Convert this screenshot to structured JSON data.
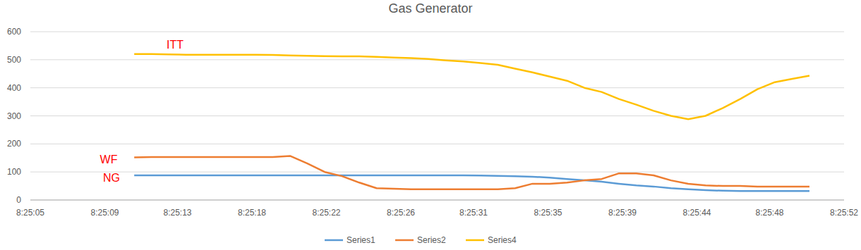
{
  "chart_data": {
    "type": "line",
    "title": "Gas Generator",
    "annotations": [
      "ITT",
      "WF",
      "NG"
    ],
    "x": [
      11,
      12,
      13,
      14,
      15,
      16,
      17,
      18,
      19,
      20,
      21,
      22,
      23,
      24,
      25,
      26,
      27,
      28,
      29,
      30,
      31,
      32,
      33,
      34,
      35,
      36,
      37,
      38,
      39,
      40,
      41,
      42,
      43,
      44,
      45,
      46,
      47,
      48,
      49,
      50
    ],
    "series": [
      {
        "name": "Series1",
        "color": "#5b9bd5",
        "values": [
          88,
          88,
          88,
          88,
          88,
          88,
          88,
          88,
          88,
          88,
          88,
          88,
          88,
          88,
          88,
          88,
          88,
          88,
          88,
          88,
          87,
          86,
          85,
          83,
          80,
          75,
          70,
          65,
          58,
          52,
          48,
          42,
          38,
          35,
          33,
          32,
          32,
          32,
          32,
          32
        ]
      },
      {
        "name": "Series2",
        "color": "#ed7d31",
        "values": [
          152,
          153,
          153,
          153,
          153,
          153,
          153,
          153,
          153,
          157,
          130,
          100,
          85,
          62,
          42,
          40,
          38,
          38,
          38,
          38,
          38,
          38,
          42,
          58,
          58,
          62,
          70,
          75,
          95,
          95,
          88,
          70,
          58,
          52,
          50,
          50,
          48,
          48,
          48,
          48
        ]
      },
      {
        "name": "Series4",
        "color": "#ffc000",
        "values": [
          520,
          520,
          519,
          518,
          518,
          518,
          518,
          518,
          517,
          515,
          514,
          513,
          512,
          512,
          510,
          508,
          506,
          503,
          498,
          494,
          488,
          482,
          468,
          455,
          440,
          425,
          400,
          385,
          360,
          340,
          318,
          300,
          288,
          300,
          328,
          360,
          395,
          420,
          432,
          443
        ]
      }
    ],
    "xlim": [
      5,
      52
    ],
    "xticks": [
      {
        "value": 5,
        "label": "8:25:05"
      },
      {
        "value": 9.3,
        "label": "8:25:09"
      },
      {
        "value": 13.5,
        "label": "8:25:13"
      },
      {
        "value": 17.8,
        "label": "8:25:18"
      },
      {
        "value": 22.1,
        "label": "8:25:22"
      },
      {
        "value": 26.4,
        "label": "8:25:26"
      },
      {
        "value": 30.6,
        "label": "8:25:31"
      },
      {
        "value": 34.9,
        "label": "8:25:35"
      },
      {
        "value": 39.2,
        "label": "8:25:39"
      },
      {
        "value": 43.5,
        "label": "8:25:44"
      },
      {
        "value": 47.7,
        "label": "8:25:48"
      },
      {
        "value": 52,
        "label": "8:25:52"
      }
    ],
    "ylim": [
      0,
      600
    ],
    "yticks": [
      0,
      100,
      200,
      300,
      400,
      500,
      600
    ],
    "grid": true,
    "legend": "bottom"
  }
}
